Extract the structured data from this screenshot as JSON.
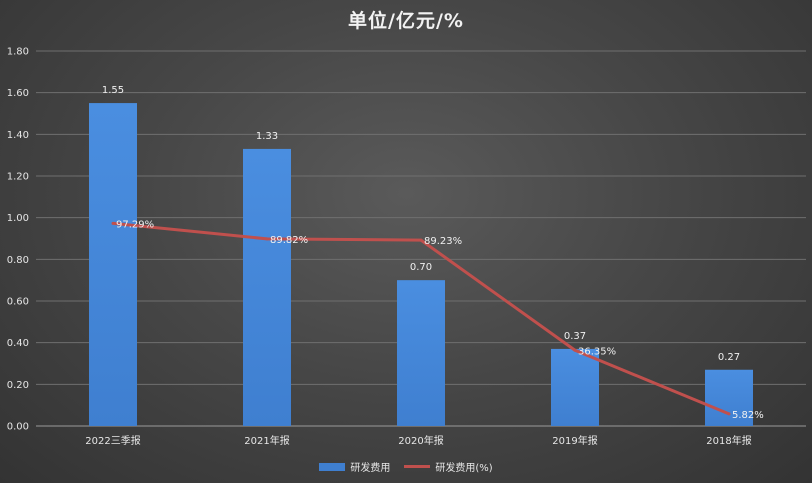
{
  "title": "单位/亿元/%",
  "colors": {
    "bar": "#3f7fd0",
    "line": "#c0504d"
  },
  "chart_data": {
    "type": "bar",
    "categories": [
      "2022三季报",
      "2021年报",
      "2020年报",
      "2019年报",
      "2018年报"
    ],
    "series": [
      {
        "name": "研发费用",
        "type": "bar",
        "values": [
          1.55,
          1.33,
          0.7,
          0.37,
          0.27
        ],
        "labels": [
          "1.55",
          "1.33",
          "0.70",
          "0.37",
          "0.27"
        ]
      },
      {
        "name": "研发费用(%)",
        "type": "line",
        "values": [
          97.29,
          89.82,
          89.23,
          36.35,
          5.82
        ],
        "labels": [
          "97.29%",
          "89.82%",
          "89.23%",
          "36.35%",
          "5.82%"
        ]
      }
    ],
    "yaxis": {
      "min": 0,
      "max": 1.8,
      "ticks": [
        "0.00",
        "0.20",
        "0.40",
        "0.60",
        "0.80",
        "1.00",
        "1.20",
        "1.40",
        "1.60",
        "1.80"
      ]
    },
    "secondary_yaxis": {
      "min": 0,
      "max": 180
    },
    "grid": true,
    "legend_position": "bottom"
  }
}
